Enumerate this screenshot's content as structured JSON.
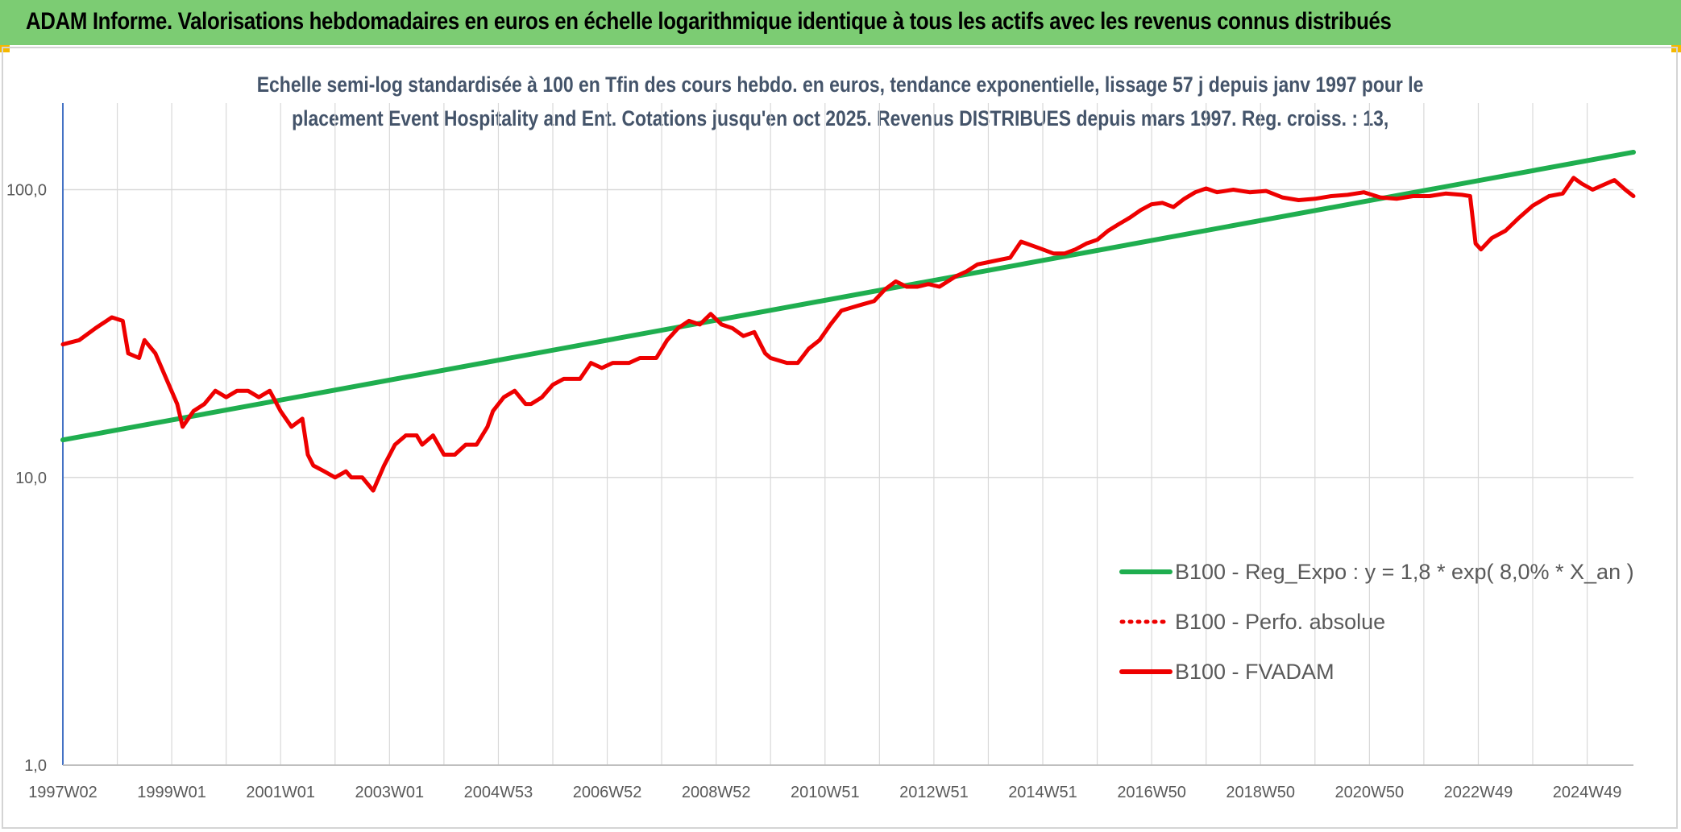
{
  "header": {
    "title": "ADAM Informe. Valorisations hebdomadaires en euros en échelle logarithmique identique à tous les actifs avec les revenus connus distribués"
  },
  "colors": {
    "banner": "#7ccc73",
    "regression": "#1fae4f",
    "fvadam": "#ee0000",
    "perfo": "#ee0000",
    "grid": "#d9d9d9",
    "axis_text": "#595959"
  },
  "chart_data": {
    "type": "line",
    "title_line1": "Echelle semi-log standardisée à 100 en Tfin des cours hebdo. en euros, tendance exponentielle, lissage 57 j depuis janv 1997 pour le",
    "title_line2": "placement Event Hospitality and Ent. Cotations jusqu'en oct 2025. Revenus DISTRIBUES depuis mars 1997. Reg. croiss. : 13,",
    "y_scale": "log",
    "ylim": [
      1,
      200
    ],
    "y_ticks": [
      {
        "value": 1,
        "label": "1,0"
      },
      {
        "value": 10,
        "label": "10,0"
      },
      {
        "value": 100,
        "label": "100,0"
      }
    ],
    "x_range": [
      1997.0,
      2025.85
    ],
    "x_ticks": [
      {
        "x": 1997.0,
        "label": "1997W02"
      },
      {
        "x": 1999.0,
        "label": "1999W01"
      },
      {
        "x": 2001.0,
        "label": "2001W01"
      },
      {
        "x": 2003.0,
        "label": "2003W01"
      },
      {
        "x": 2005.0,
        "label": "2004W53"
      },
      {
        "x": 2007.0,
        "label": "2006W52"
      },
      {
        "x": 2009.0,
        "label": "2008W52"
      },
      {
        "x": 2011.0,
        "label": "2010W51"
      },
      {
        "x": 2013.0,
        "label": "2012W51"
      },
      {
        "x": 2015.0,
        "label": "2014W51"
      },
      {
        "x": 2017.0,
        "label": "2016W50"
      },
      {
        "x": 2019.0,
        "label": "2018W50"
      },
      {
        "x": 2021.0,
        "label": "2020W50"
      },
      {
        "x": 2023.0,
        "label": "2022W49"
      },
      {
        "x": 2025.0,
        "label": "2024W49"
      }
    ],
    "legend": {
      "position": "bottom-right",
      "items": [
        {
          "key": "reg",
          "label": "B100 - Reg_Expo : y = 1,8 * exp( 8,0% *  X_an )",
          "style": "solid-green"
        },
        {
          "key": "perfo",
          "label": "B100 - Perfo. absolue",
          "style": "dotted-red"
        },
        {
          "key": "fvadam",
          "label": "B100 - FVADAM",
          "style": "solid-red"
        }
      ]
    },
    "series": [
      {
        "name": "B100 - Reg_Expo",
        "values": [
          [
            1997.0,
            13.5
          ],
          [
            2025.85,
            135
          ]
        ]
      },
      {
        "name": "B100 - FVADAM",
        "values": [
          [
            1997.0,
            29
          ],
          [
            1997.3,
            30
          ],
          [
            1997.6,
            33
          ],
          [
            1997.9,
            36
          ],
          [
            1998.1,
            35
          ],
          [
            1998.2,
            27
          ],
          [
            1998.4,
            26
          ],
          [
            1998.5,
            30
          ],
          [
            1998.7,
            27
          ],
          [
            1998.9,
            22
          ],
          [
            1999.1,
            18
          ],
          [
            1999.2,
            15
          ],
          [
            1999.4,
            17
          ],
          [
            1999.6,
            18
          ],
          [
            1999.8,
            20
          ],
          [
            2000.0,
            19
          ],
          [
            2000.2,
            20
          ],
          [
            2000.4,
            20
          ],
          [
            2000.6,
            19
          ],
          [
            2000.8,
            20
          ],
          [
            2001.0,
            17
          ],
          [
            2001.2,
            15
          ],
          [
            2001.4,
            16
          ],
          [
            2001.5,
            12
          ],
          [
            2001.6,
            11
          ],
          [
            2001.8,
            10.5
          ],
          [
            2002.0,
            10
          ],
          [
            2002.2,
            10.5
          ],
          [
            2002.3,
            10
          ],
          [
            2002.5,
            10
          ],
          [
            2002.7,
            9
          ],
          [
            2002.9,
            11
          ],
          [
            2003.1,
            13
          ],
          [
            2003.3,
            14
          ],
          [
            2003.5,
            14
          ],
          [
            2003.6,
            13
          ],
          [
            2003.8,
            14
          ],
          [
            2004.0,
            12
          ],
          [
            2004.2,
            12
          ],
          [
            2004.4,
            13
          ],
          [
            2004.6,
            13
          ],
          [
            2004.8,
            15
          ],
          [
            2004.9,
            17
          ],
          [
            2005.1,
            19
          ],
          [
            2005.3,
            20
          ],
          [
            2005.5,
            18
          ],
          [
            2005.6,
            18
          ],
          [
            2005.8,
            19
          ],
          [
            2006.0,
            21
          ],
          [
            2006.2,
            22
          ],
          [
            2006.5,
            22
          ],
          [
            2006.7,
            25
          ],
          [
            2006.9,
            24
          ],
          [
            2007.1,
            25
          ],
          [
            2007.4,
            25
          ],
          [
            2007.6,
            26
          ],
          [
            2007.9,
            26
          ],
          [
            2008.1,
            30
          ],
          [
            2008.3,
            33
          ],
          [
            2008.5,
            35
          ],
          [
            2008.7,
            34
          ],
          [
            2008.9,
            37
          ],
          [
            2009.1,
            34
          ],
          [
            2009.3,
            33
          ],
          [
            2009.5,
            31
          ],
          [
            2009.7,
            32
          ],
          [
            2009.9,
            27
          ],
          [
            2010.0,
            26
          ],
          [
            2010.3,
            25
          ],
          [
            2010.5,
            25
          ],
          [
            2010.7,
            28
          ],
          [
            2010.9,
            30
          ],
          [
            2011.1,
            34
          ],
          [
            2011.3,
            38
          ],
          [
            2011.5,
            39
          ],
          [
            2011.7,
            40
          ],
          [
            2011.9,
            41
          ],
          [
            2012.1,
            45
          ],
          [
            2012.3,
            48
          ],
          [
            2012.5,
            46
          ],
          [
            2012.7,
            46
          ],
          [
            2012.9,
            47
          ],
          [
            2013.1,
            46
          ],
          [
            2013.4,
            50
          ],
          [
            2013.6,
            52
          ],
          [
            2013.8,
            55
          ],
          [
            2014.0,
            56
          ],
          [
            2014.2,
            57
          ],
          [
            2014.4,
            58
          ],
          [
            2014.6,
            66
          ],
          [
            2014.8,
            64
          ],
          [
            2015.0,
            62
          ],
          [
            2015.2,
            60
          ],
          [
            2015.4,
            60
          ],
          [
            2015.6,
            62
          ],
          [
            2015.8,
            65
          ],
          [
            2016.0,
            67
          ],
          [
            2016.2,
            72
          ],
          [
            2016.4,
            76
          ],
          [
            2016.6,
            80
          ],
          [
            2016.8,
            85
          ],
          [
            2017.0,
            89
          ],
          [
            2017.2,
            90
          ],
          [
            2017.4,
            87
          ],
          [
            2017.6,
            93
          ],
          [
            2017.8,
            98
          ],
          [
            2018.0,
            101
          ],
          [
            2018.2,
            98
          ],
          [
            2018.5,
            100
          ],
          [
            2018.8,
            98
          ],
          [
            2019.1,
            99
          ],
          [
            2019.4,
            94
          ],
          [
            2019.7,
            92
          ],
          [
            2020.0,
            93
          ],
          [
            2020.3,
            95
          ],
          [
            2020.6,
            96
          ],
          [
            2020.9,
            98
          ],
          [
            2021.2,
            94
          ],
          [
            2021.5,
            93
          ],
          [
            2021.8,
            95
          ],
          [
            2022.1,
            95
          ],
          [
            2022.4,
            97
          ],
          [
            2022.7,
            96
          ],
          [
            2022.85,
            95
          ],
          [
            2022.95,
            65
          ],
          [
            2023.05,
            62
          ],
          [
            2023.25,
            68
          ],
          [
            2023.5,
            72
          ],
          [
            2023.75,
            80
          ],
          [
            2024.0,
            88
          ],
          [
            2024.3,
            95
          ],
          [
            2024.55,
            97
          ],
          [
            2024.75,
            110
          ],
          [
            2024.9,
            105
          ],
          [
            2025.1,
            100
          ],
          [
            2025.3,
            104
          ],
          [
            2025.5,
            108
          ],
          [
            2025.7,
            100
          ],
          [
            2025.85,
            95
          ]
        ]
      }
    ]
  }
}
